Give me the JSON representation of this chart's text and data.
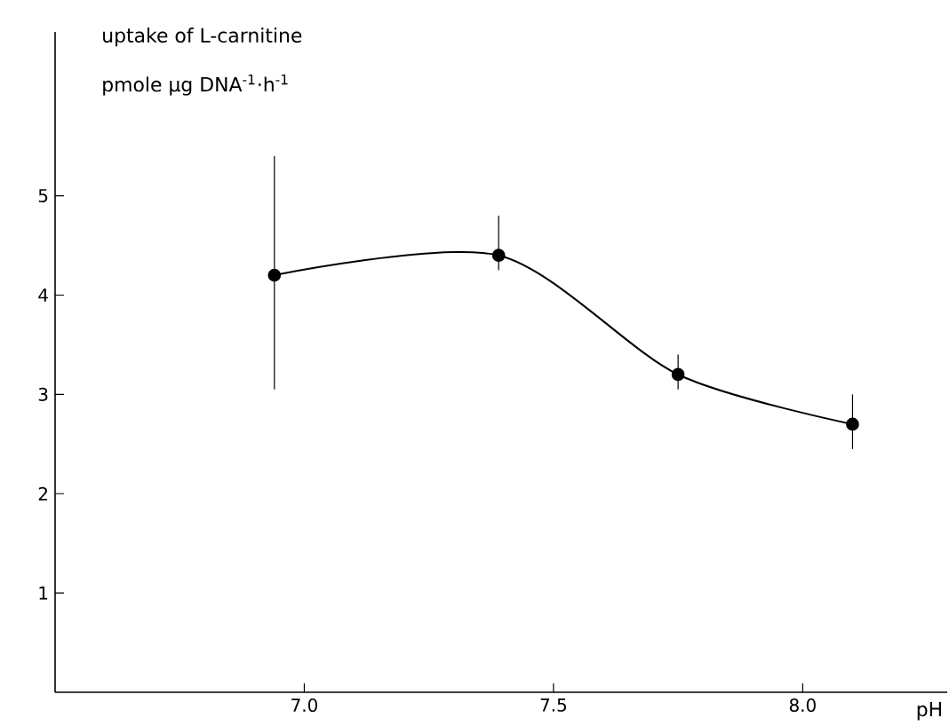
{
  "chart_data": {
    "type": "line",
    "title": "uptake of L-carnitine",
    "ylabel": "pmole µg DNA$^{-1}$·h$^{-1}$",
    "xlabel": "pH",
    "x": [
      6.94,
      7.39,
      7.75,
      8.1
    ],
    "series": [
      {
        "color": "#000000",
        "values": [
          4.2,
          4.4,
          3.2,
          2.7
        ],
        "errors": [
          [
            3.05,
            5.4
          ],
          [
            4.25,
            4.8
          ],
          [
            3.05,
            3.4
          ],
          [
            2.45,
            3.0
          ]
        ]
      }
    ],
    "xlim": [
      6.5,
      8.29
    ],
    "ylim": [
      0,
      6.65
    ],
    "xticks": [
      {
        "value": 7.0,
        "label": "7.0"
      },
      {
        "value": 7.5,
        "label": "7.5"
      },
      {
        "value": 8.0,
        "label": "8.0"
      }
    ],
    "yticks": [
      1,
      2,
      3,
      4,
      5
    ],
    "marker": "circle",
    "line_style": "solid"
  }
}
